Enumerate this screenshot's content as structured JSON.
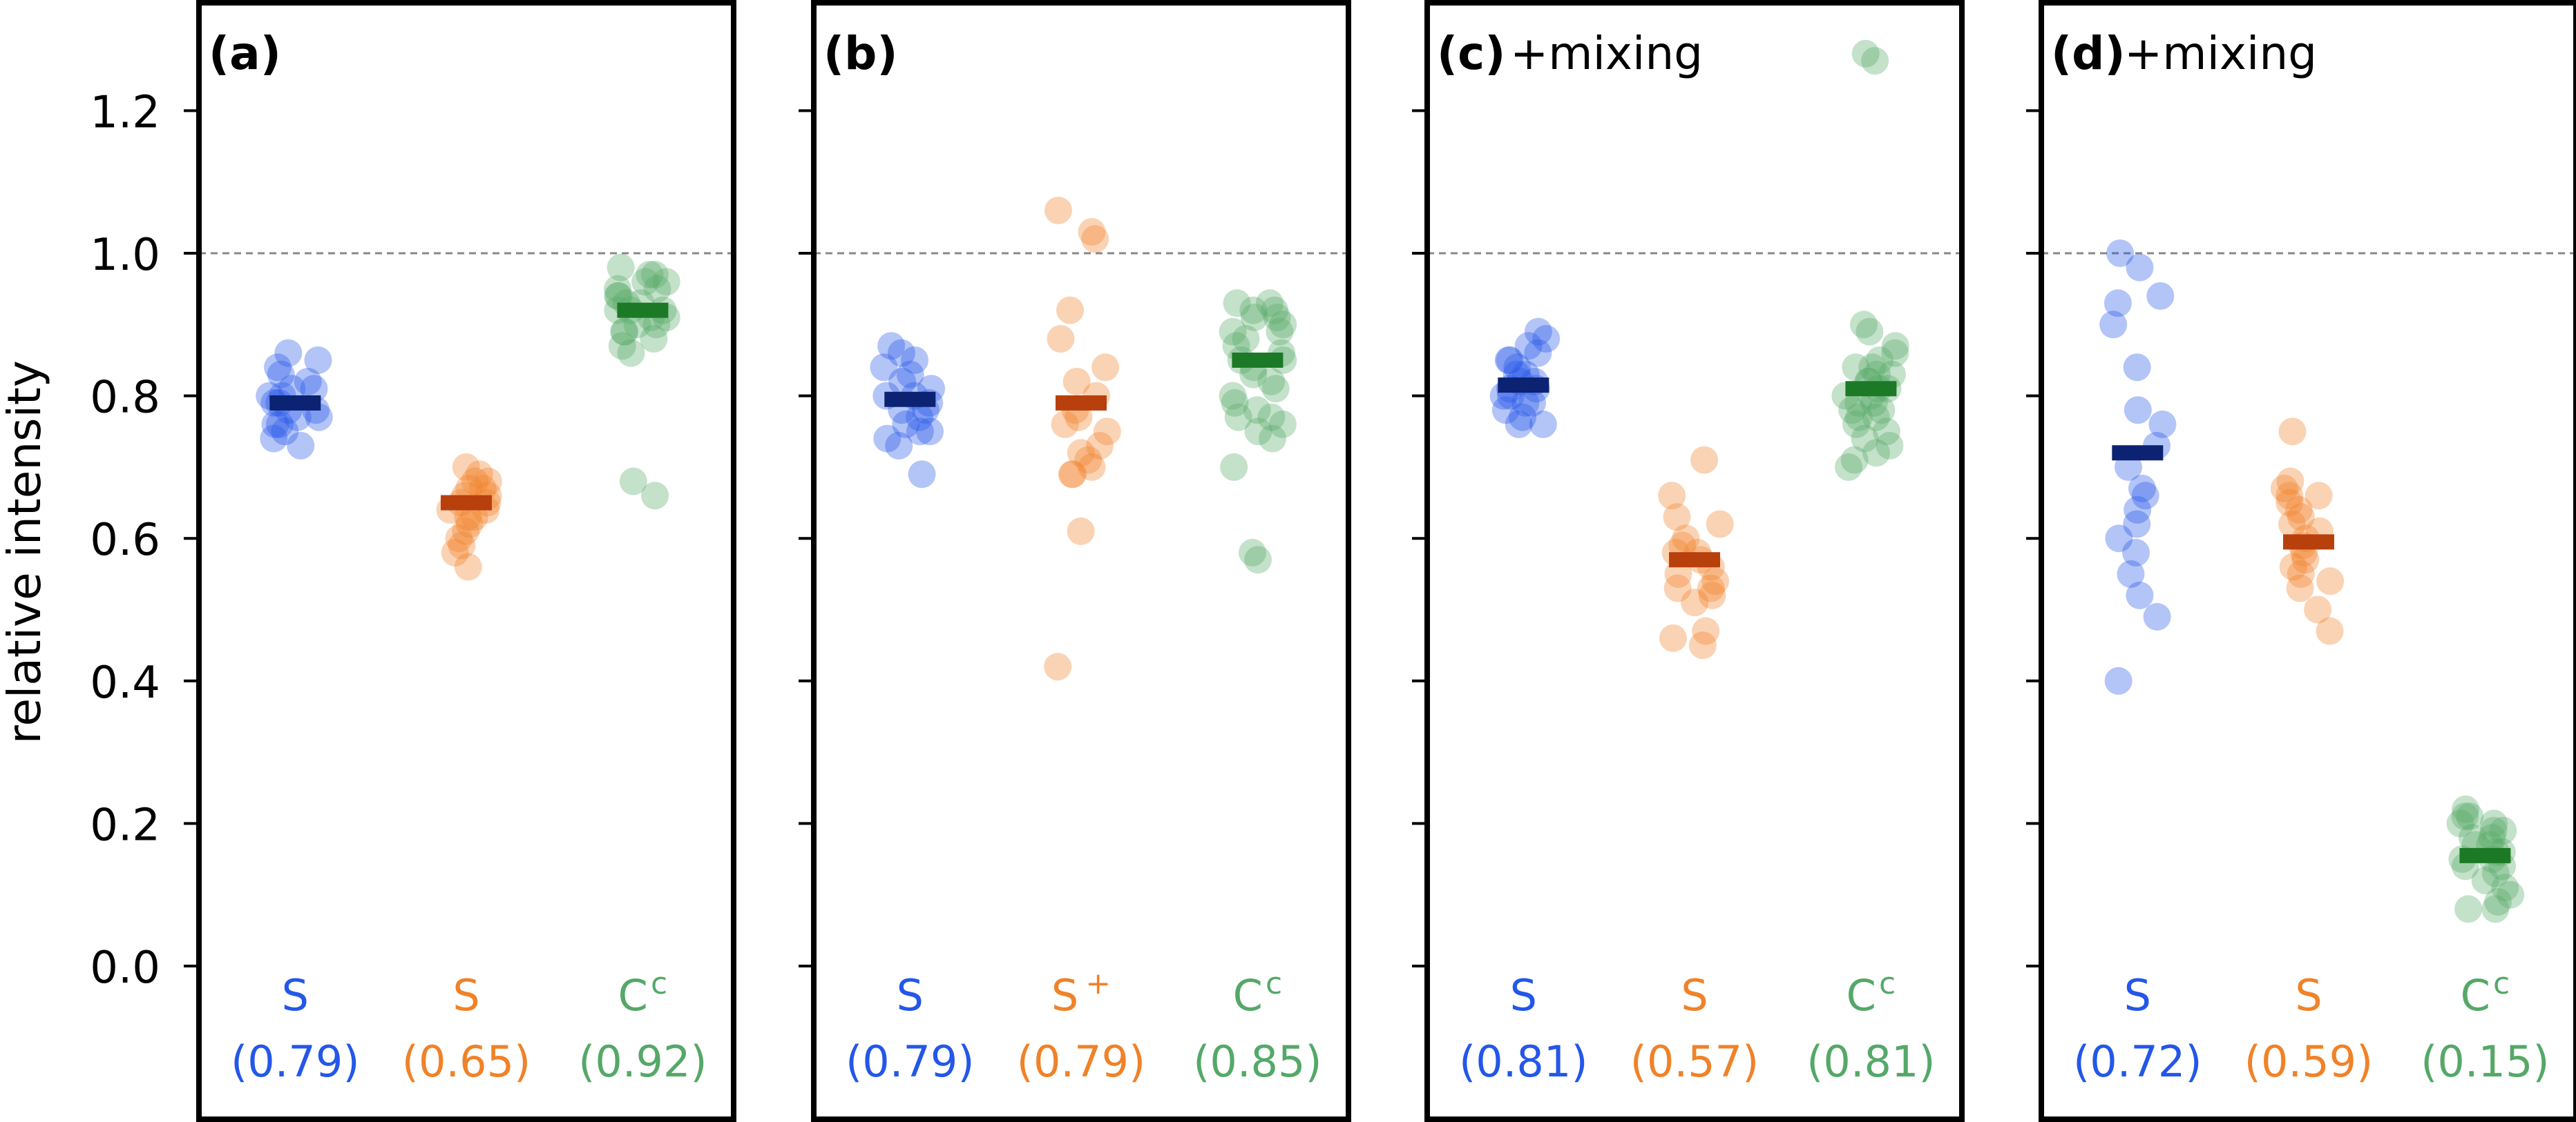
{
  "chart_data": {
    "type": "scatter",
    "ylabel": "relative intensity",
    "ylim": [
      -0.18,
      1.35
    ],
    "yticks": [
      0.0,
      0.2,
      0.4,
      0.6,
      0.8,
      1.0,
      1.2
    ],
    "ytick_labels": [
      "0.0",
      "0.2",
      "0.4",
      "0.6",
      "0.8",
      "1.0",
      "1.2"
    ],
    "reference_line": 1.0,
    "grid": false,
    "colors": {
      "blue": "#2457e8",
      "blue_mean": "#0c2272",
      "orange": "#f08228",
      "orange_mean": "#b8400d",
      "green": "#55a868",
      "green_mean": "#1c7a26"
    },
    "panels": [
      {
        "label": "(a)",
        "annotation": "",
        "groups": [
          {
            "name": "S",
            "superscript": "",
            "mean_label": "(0.79)",
            "color": "blue",
            "mean": 0.79,
            "points": [
              0.86,
              0.85,
              0.84,
              0.83,
              0.82,
              0.81,
              0.81,
              0.8,
              0.8,
              0.79,
              0.79,
              0.78,
              0.78,
              0.77,
              0.77,
              0.76,
              0.76,
              0.75,
              0.74,
              0.73
            ]
          },
          {
            "name": "S",
            "superscript": "",
            "mean_label": "(0.65)",
            "color": "orange",
            "mean": 0.65,
            "points": [
              0.7,
              0.69,
              0.68,
              0.68,
              0.67,
              0.67,
              0.66,
              0.66,
              0.65,
              0.65,
              0.64,
              0.64,
              0.63,
              0.63,
              0.62,
              0.61,
              0.6,
              0.59,
              0.58,
              0.56
            ]
          },
          {
            "name": "C",
            "superscript": "c",
            "mean_label": "(0.92)",
            "color": "green",
            "mean": 0.92,
            "points": [
              0.98,
              0.97,
              0.97,
              0.96,
              0.96,
              0.95,
              0.95,
              0.94,
              0.94,
              0.93,
              0.93,
              0.92,
              0.92,
              0.92,
              0.91,
              0.91,
              0.9,
              0.9,
              0.89,
              0.89,
              0.88,
              0.87,
              0.86,
              0.68,
              0.66
            ]
          }
        ]
      },
      {
        "label": "(b)",
        "annotation": "",
        "groups": [
          {
            "name": "S",
            "superscript": "",
            "mean_label": "(0.79)",
            "color": "blue",
            "mean": 0.795,
            "points": [
              0.87,
              0.86,
              0.85,
              0.84,
              0.83,
              0.82,
              0.81,
              0.8,
              0.8,
              0.79,
              0.78,
              0.78,
              0.77,
              0.76,
              0.75,
              0.75,
              0.74,
              0.73,
              0.69
            ]
          },
          {
            "name": "S",
            "superscript": "+",
            "mean_label": "(0.79)",
            "color": "orange",
            "mean": 0.79,
            "points": [
              1.06,
              1.03,
              1.02,
              0.92,
              0.88,
              0.84,
              0.82,
              0.8,
              0.78,
              0.77,
              0.76,
              0.75,
              0.73,
              0.72,
              0.71,
              0.7,
              0.69,
              0.69,
              0.61,
              0.42
            ]
          },
          {
            "name": "C",
            "superscript": "c",
            "mean_label": "(0.85)",
            "color": "green",
            "mean": 0.85,
            "points": [
              0.93,
              0.93,
              0.92,
              0.92,
              0.91,
              0.91,
              0.9,
              0.89,
              0.89,
              0.88,
              0.87,
              0.86,
              0.85,
              0.85,
              0.84,
              0.83,
              0.82,
              0.81,
              0.8,
              0.79,
              0.78,
              0.77,
              0.77,
              0.76,
              0.75,
              0.74,
              0.7,
              0.58,
              0.57
            ]
          }
        ]
      },
      {
        "label": "(c)",
        "annotation": "+mixing",
        "groups": [
          {
            "name": "S",
            "superscript": "",
            "mean_label": "(0.81)",
            "color": "blue",
            "mean": 0.815,
            "points": [
              0.89,
              0.88,
              0.87,
              0.86,
              0.85,
              0.85,
              0.84,
              0.83,
              0.83,
              0.82,
              0.82,
              0.81,
              0.81,
              0.8,
              0.8,
              0.79,
              0.79,
              0.78,
              0.77,
              0.76,
              0.76
            ]
          },
          {
            "name": "S",
            "superscript": "",
            "mean_label": "(0.57)",
            "color": "orange",
            "mean": 0.57,
            "points": [
              0.71,
              0.66,
              0.63,
              0.62,
              0.6,
              0.59,
              0.58,
              0.58,
              0.57,
              0.56,
              0.55,
              0.54,
              0.53,
              0.53,
              0.52,
              0.51,
              0.47,
              0.46,
              0.45
            ]
          },
          {
            "name": "C",
            "superscript": "c",
            "mean_label": "(0.81)",
            "color": "green",
            "mean": 0.81,
            "points": [
              1.28,
              1.27,
              0.9,
              0.89,
              0.87,
              0.86,
              0.85,
              0.84,
              0.84,
              0.83,
              0.83,
              0.82,
              0.82,
              0.81,
              0.81,
              0.8,
              0.8,
              0.79,
              0.79,
              0.78,
              0.78,
              0.77,
              0.77,
              0.76,
              0.75,
              0.74,
              0.73,
              0.72,
              0.71,
              0.7
            ]
          }
        ]
      },
      {
        "label": "(d)",
        "annotation": "+mixing",
        "groups": [
          {
            "name": "S",
            "superscript": "",
            "mean_label": "(0.72)",
            "color": "blue",
            "mean": 0.72,
            "points": [
              1.0,
              0.98,
              0.94,
              0.93,
              0.9,
              0.84,
              0.78,
              0.76,
              0.73,
              0.7,
              0.67,
              0.66,
              0.64,
              0.62,
              0.6,
              0.58,
              0.55,
              0.52,
              0.49,
              0.4
            ]
          },
          {
            "name": "S",
            "superscript": "",
            "mean_label": "(0.59)",
            "color": "orange",
            "mean": 0.595,
            "points": [
              0.75,
              0.68,
              0.67,
              0.66,
              0.66,
              0.65,
              0.64,
              0.63,
              0.62,
              0.61,
              0.6,
              0.59,
              0.58,
              0.57,
              0.56,
              0.55,
              0.54,
              0.53,
              0.5,
              0.47
            ]
          },
          {
            "name": "C",
            "superscript": "c",
            "mean_label": "(0.15)",
            "color": "green",
            "mean": 0.155,
            "points": [
              0.22,
              0.21,
              0.21,
              0.2,
              0.2,
              0.19,
              0.19,
              0.18,
              0.18,
              0.17,
              0.17,
              0.16,
              0.16,
              0.15,
              0.15,
              0.14,
              0.14,
              0.13,
              0.12,
              0.11,
              0.1,
              0.09,
              0.08,
              0.08
            ]
          }
        ]
      }
    ]
  }
}
